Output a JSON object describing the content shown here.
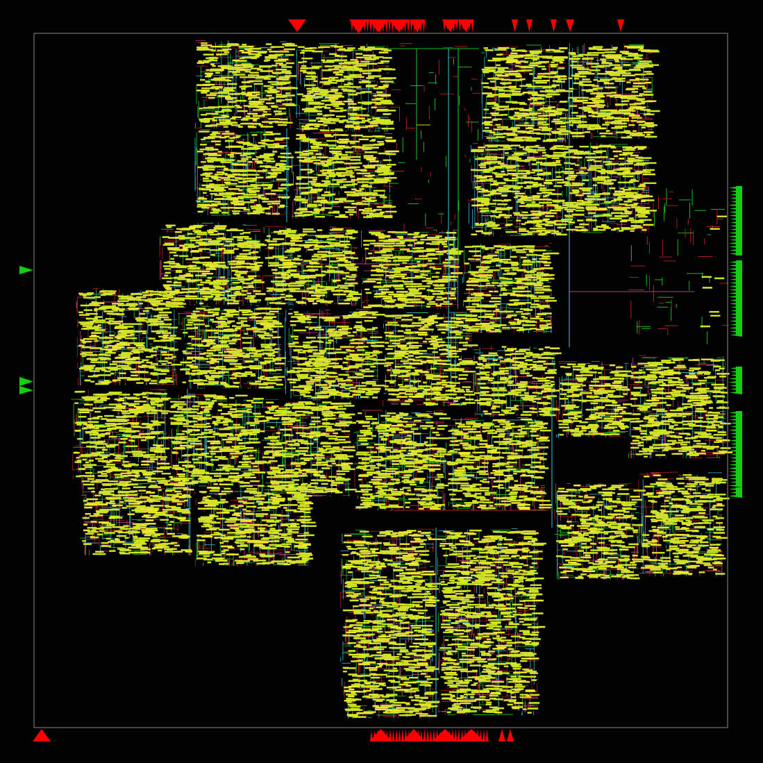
{
  "colors": {
    "background": "#020203",
    "die_outline": "#8a8a8a",
    "pin_top_bottom": "#ff0000",
    "pin_left_right": "#10d010",
    "cell_fill": "#c8ec16",
    "cell_highlight": "#f0f020",
    "cell_outline": "#e8c060",
    "metal_green": "#1fd01f",
    "metal_red": "#c81e1e",
    "metal_cyan": "#40c8e0",
    "metal_magenta": "#d04090",
    "metal_orange": "#e08a20"
  },
  "view": {
    "type": "placed-and-routed chip layout",
    "blocks": 28,
    "pin_sides": [
      "top",
      "bottom",
      "left",
      "right"
    ]
  }
}
